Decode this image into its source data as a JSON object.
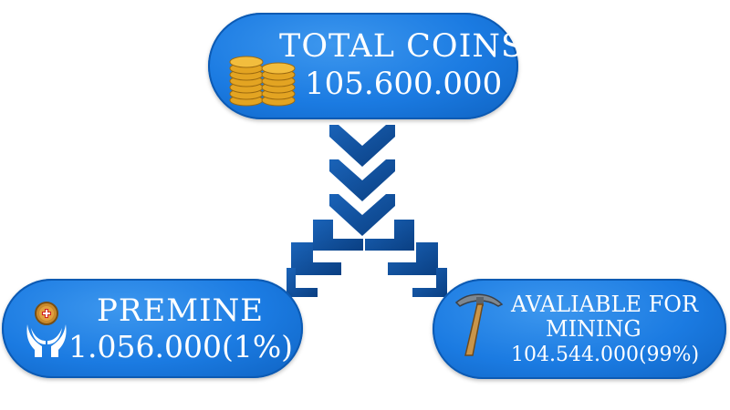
{
  "diagram": {
    "total": {
      "label": "TOTAL COINS",
      "value": "105.600.000",
      "icon": "coin-stacks-icon"
    },
    "premine": {
      "label": "PREMINE",
      "value": "1.056.000(1%)",
      "icon": "hands-holding-coin-icon"
    },
    "mining": {
      "label_line1": "AVALIABLE FOR",
      "label_line2": "MINING",
      "value": "104.544.000(99%)",
      "icon": "pickaxe-icon"
    },
    "colors": {
      "pill_blue": "#1b7be2",
      "arrow_navy": "#0c4a93",
      "coin_gold": "#e3a422",
      "text": "#ffffff"
    }
  }
}
